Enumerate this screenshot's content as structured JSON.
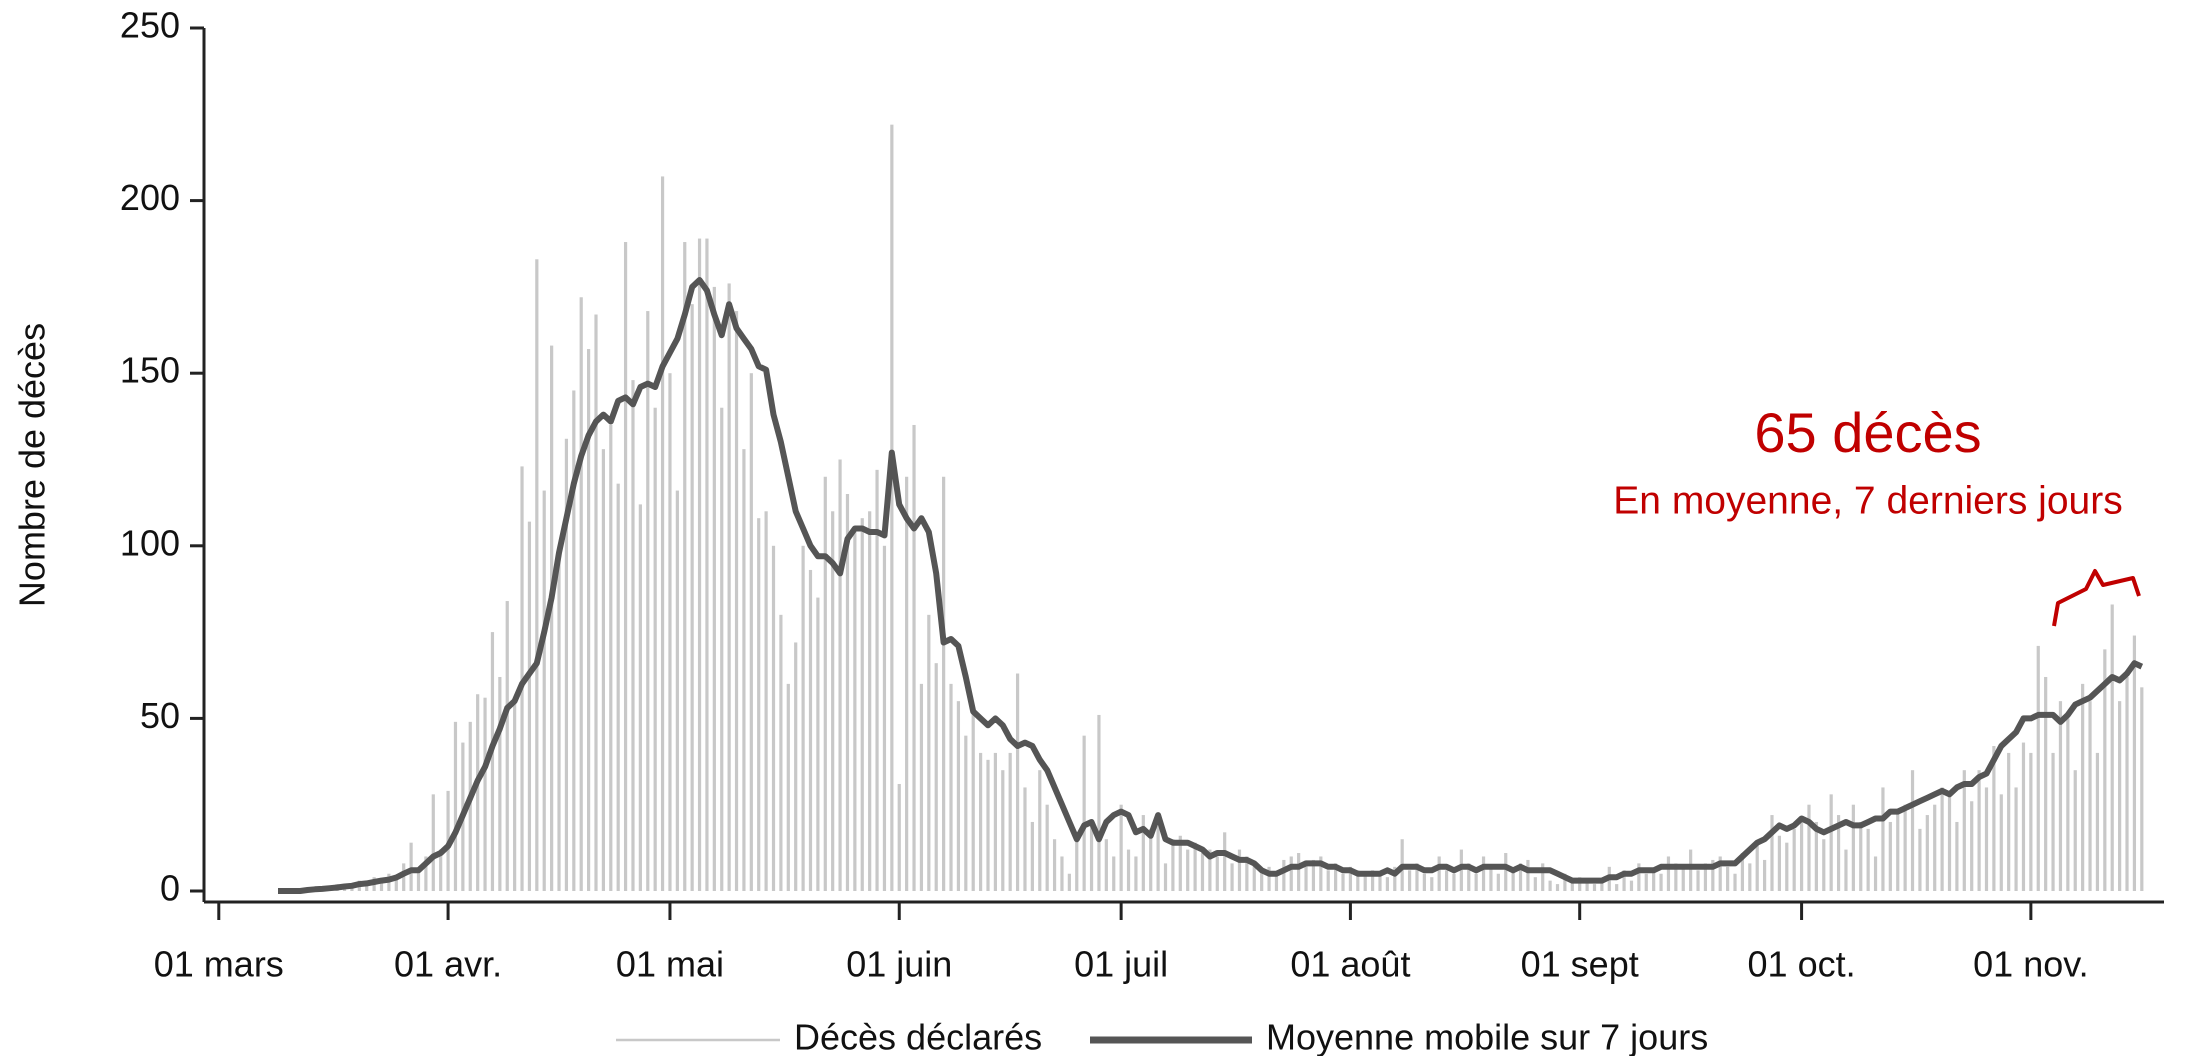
{
  "chart_data": {
    "type": "bar",
    "y_label": "Nombre de décès",
    "annotations": [
      "65 décès",
      "En moyenne, 7 derniers jours"
    ],
    "annotation_color": "#c00000",
    "xlim": [
      "02-28",
      "11-19"
    ],
    "xticks": [
      {
        "value": "03-01",
        "label": "01 mars"
      },
      {
        "value": "04-01",
        "label": "01 avr."
      },
      {
        "value": "05-01",
        "label": "01 mai"
      },
      {
        "value": "06-01",
        "label": "01 juin"
      },
      {
        "value": "07-01",
        "label": "01 juil"
      },
      {
        "value": "08-01",
        "label": "01 août"
      },
      {
        "value": "09-01",
        "label": "01 sept"
      },
      {
        "value": "10-01",
        "label": "01 oct."
      },
      {
        "value": "11-01",
        "label": "01 nov."
      }
    ],
    "ylim": [
      0,
      250
    ],
    "yticks": [
      0,
      50,
      100,
      150,
      200,
      250
    ],
    "x": [
      "03-09",
      "03-10",
      "03-11",
      "03-12",
      "03-13",
      "03-14",
      "03-15",
      "03-16",
      "03-17",
      "03-18",
      "03-19",
      "03-20",
      "03-21",
      "03-22",
      "03-23",
      "03-24",
      "03-25",
      "03-26",
      "03-27",
      "03-28",
      "03-29",
      "03-30",
      "03-31",
      "04-01",
      "04-02",
      "04-03",
      "04-04",
      "04-05",
      "04-06",
      "04-07",
      "04-08",
      "04-09",
      "04-10",
      "04-11",
      "04-12",
      "04-13",
      "04-14",
      "04-15",
      "04-16",
      "04-17",
      "04-18",
      "04-19",
      "04-20",
      "04-21",
      "04-22",
      "04-23",
      "04-24",
      "04-25",
      "04-26",
      "04-27",
      "04-28",
      "04-29",
      "04-30",
      "05-01",
      "05-02",
      "05-03",
      "05-04",
      "05-05",
      "05-06",
      "05-07",
      "05-08",
      "05-09",
      "05-10",
      "05-11",
      "05-12",
      "05-13",
      "05-14",
      "05-15",
      "05-16",
      "05-17",
      "05-18",
      "05-19",
      "05-20",
      "05-21",
      "05-22",
      "05-23",
      "05-24",
      "05-25",
      "05-26",
      "05-27",
      "05-28",
      "05-29",
      "05-30",
      "05-31",
      "06-01",
      "06-02",
      "06-03",
      "06-04",
      "06-05",
      "06-06",
      "06-07",
      "06-08",
      "06-09",
      "06-10",
      "06-11",
      "06-12",
      "06-13",
      "06-14",
      "06-15",
      "06-16",
      "06-17",
      "06-18",
      "06-19",
      "06-20",
      "06-21",
      "06-22",
      "06-23",
      "06-24",
      "06-25",
      "06-26",
      "06-27",
      "06-28",
      "06-29",
      "06-30",
      "07-01",
      "07-02",
      "07-03",
      "07-04",
      "07-05",
      "07-06",
      "07-07",
      "07-08",
      "07-09",
      "07-10",
      "07-11",
      "07-12",
      "07-13",
      "07-14",
      "07-15",
      "07-16",
      "07-17",
      "07-18",
      "07-19",
      "07-20",
      "07-21",
      "07-22",
      "07-23",
      "07-24",
      "07-25",
      "07-26",
      "07-27",
      "07-28",
      "07-29",
      "07-30",
      "07-31",
      "08-01",
      "08-02",
      "08-03",
      "08-04",
      "08-05",
      "08-06",
      "08-07",
      "08-08",
      "08-09",
      "08-10",
      "08-11",
      "08-12",
      "08-13",
      "08-14",
      "08-15",
      "08-16",
      "08-17",
      "08-18",
      "08-19",
      "08-20",
      "08-21",
      "08-22",
      "08-23",
      "08-24",
      "08-25",
      "08-26",
      "08-27",
      "08-28",
      "08-29",
      "08-30",
      "08-31",
      "09-01",
      "09-02",
      "09-03",
      "09-04",
      "09-05",
      "09-06",
      "09-07",
      "09-08",
      "09-09",
      "09-10",
      "09-11",
      "09-12",
      "09-13",
      "09-14",
      "09-15",
      "09-16",
      "09-17",
      "09-18",
      "09-19",
      "09-20",
      "09-21",
      "09-22",
      "09-23",
      "09-24",
      "09-25",
      "09-26",
      "09-27",
      "09-28",
      "09-29",
      "09-30",
      "10-01",
      "10-02",
      "10-03",
      "10-04",
      "10-05",
      "10-06",
      "10-07",
      "10-08",
      "10-09",
      "10-10",
      "10-11",
      "10-12",
      "10-13",
      "10-14",
      "10-15",
      "10-16",
      "10-17",
      "10-18",
      "10-19",
      "10-20",
      "10-21",
      "10-22",
      "10-23",
      "10-24",
      "10-25",
      "10-26",
      "10-27",
      "10-28",
      "10-29",
      "10-30",
      "10-31",
      "11-01",
      "11-02",
      "11-03",
      "11-04",
      "11-05",
      "11-06",
      "11-07",
      "11-08",
      "11-09",
      "11-10",
      "11-11",
      "11-12",
      "11-13",
      "11-14",
      "11-15",
      "11-16"
    ],
    "series": [
      {
        "name": "Décès déclarés",
        "type": "bar",
        "color": "#c8c8c8",
        "values": [
          0,
          0,
          0,
          0,
          1,
          1,
          0,
          1,
          2,
          2,
          1,
          3,
          2,
          4,
          3,
          5,
          4,
          8,
          14,
          6,
          10,
          28,
          12,
          29,
          49,
          43,
          49,
          57,
          56,
          75,
          62,
          84,
          55,
          123,
          107,
          183,
          116,
          158,
          100,
          131,
          145,
          172,
          157,
          167,
          128,
          135,
          118,
          188,
          148,
          112,
          168,
          140,
          207,
          150,
          116,
          188,
          170,
          189,
          189,
          175,
          140,
          176,
          168,
          128,
          150,
          108,
          110,
          100,
          80,
          60,
          72,
          100,
          93,
          85,
          120,
          110,
          125,
          115,
          104,
          108,
          110,
          122,
          100,
          222,
          31,
          120,
          135,
          60,
          80,
          66,
          120,
          60,
          55,
          45,
          52,
          40,
          38,
          40,
          35,
          40,
          63,
          30,
          20,
          35,
          25,
          15,
          10,
          5,
          17,
          45,
          20,
          51,
          15,
          10,
          25,
          12,
          10,
          22,
          18,
          20,
          8,
          15,
          16,
          12,
          14,
          11,
          12,
          10,
          17,
          8,
          12,
          10,
          8,
          6,
          7,
          5,
          9,
          10,
          11,
          8,
          9,
          10,
          6,
          8,
          5,
          7,
          6,
          5,
          6,
          5,
          4,
          7,
          15,
          6,
          8,
          5,
          4,
          10,
          6,
          5,
          12,
          8,
          5,
          10,
          7,
          5,
          11,
          6,
          8,
          9,
          4,
          8,
          3,
          2,
          5,
          3,
          4,
          3,
          2,
          3,
          7,
          2,
          6,
          3,
          8,
          5,
          6,
          5,
          10,
          8,
          7,
          12,
          6,
          8,
          9,
          10,
          7,
          5,
          11,
          8,
          14,
          9,
          22,
          16,
          14,
          18,
          20,
          25,
          20,
          15,
          28,
          22,
          12,
          25,
          20,
          18,
          10,
          30,
          20,
          23,
          25,
          35,
          18,
          22,
          25,
          30,
          28,
          20,
          35,
          26,
          35,
          30,
          42,
          28,
          40,
          30,
          43,
          40,
          71,
          62,
          40,
          55,
          50,
          35,
          60,
          55,
          40,
          70,
          83,
          55,
          62,
          74,
          59
        ]
      },
      {
        "name": "Moyenne mobile sur 7 jours",
        "type": "line",
        "color": "#555555",
        "values": [
          0,
          0,
          0,
          0,
          0.3,
          0.5,
          0.6,
          0.8,
          1,
          1.3,
          1.5,
          2,
          2.2,
          2.6,
          3,
          3.3,
          3.9,
          5,
          6,
          6,
          8,
          10,
          11,
          13,
          17,
          22,
          27,
          32,
          36,
          42,
          47,
          53,
          55,
          60,
          63,
          66,
          75,
          85,
          98,
          108,
          118,
          126,
          132,
          136,
          138,
          136,
          142,
          143,
          141,
          146,
          147,
          146,
          152,
          156,
          160,
          167,
          175,
          177,
          174,
          167,
          161,
          170,
          163,
          160,
          157,
          152,
          151,
          138,
          130,
          120,
          110,
          105,
          100,
          97,
          97,
          95,
          92,
          102,
          105,
          105,
          104,
          104,
          103,
          127,
          112,
          108,
          105,
          108,
          104,
          92,
          72,
          73,
          71,
          62,
          52,
          50,
          48,
          50,
          48,
          44,
          42,
          43,
          42,
          38,
          35,
          30,
          25,
          20,
          15,
          19,
          20,
          15,
          20,
          22,
          23,
          22,
          17,
          18,
          16,
          22,
          15,
          14,
          14,
          14,
          13,
          12,
          10,
          11,
          11,
          10,
          9,
          9,
          8,
          6,
          5,
          5,
          6,
          7,
          7,
          8,
          8,
          8,
          7,
          7,
          6,
          6,
          5,
          5,
          5,
          5,
          6,
          5,
          7,
          7,
          7,
          6,
          6,
          7,
          7,
          6,
          7,
          7,
          6,
          7,
          7,
          7,
          7,
          6,
          7,
          6,
          6,
          6,
          6,
          5,
          4,
          3,
          3,
          3,
          3,
          3,
          4,
          4,
          5,
          5,
          6,
          6,
          6,
          7,
          7,
          7,
          7,
          7,
          7,
          7,
          7,
          8,
          8,
          8,
          10,
          12,
          14,
          15,
          17,
          19,
          18,
          19,
          21,
          20,
          18,
          17,
          18,
          19,
          20,
          19,
          19,
          20,
          21,
          21,
          23,
          23,
          24,
          25,
          26,
          27,
          28,
          29,
          28,
          30,
          31,
          31,
          33,
          34,
          38,
          42,
          44,
          46,
          50,
          50,
          51,
          51,
          51,
          49,
          51,
          54,
          55,
          56,
          58,
          60,
          62,
          61,
          63,
          66,
          65
        ]
      }
    ]
  }
}
